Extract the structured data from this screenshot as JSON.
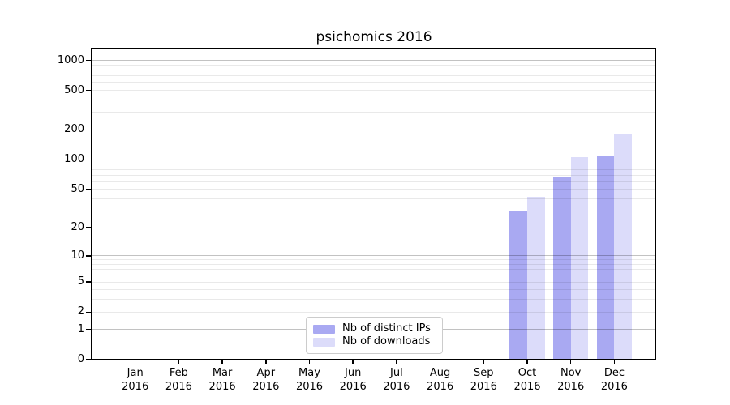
{
  "chart_data": {
    "type": "bar",
    "title": "psichomics 2016",
    "categories": [
      "Jan",
      "Feb",
      "Mar",
      "Apr",
      "May",
      "Jun",
      "Jul",
      "Aug",
      "Sep",
      "Oct",
      "Nov",
      "Dec"
    ],
    "category_year": "2016",
    "series": [
      {
        "name": "Nb of distinct IPs",
        "color": "#a9a9f2",
        "values": [
          0,
          0,
          0,
          0,
          0,
          0,
          0,
          0,
          0,
          30,
          67,
          109
        ]
      },
      {
        "name": "Nb of downloads",
        "color": "#dcdcfa",
        "values": [
          0,
          0,
          0,
          0,
          0,
          0,
          0,
          0,
          0,
          42,
          106,
          182
        ]
      }
    ],
    "xlabel": "",
    "ylabel": "",
    "yscale": "log1p",
    "ylim": [
      0,
      1341
    ],
    "yticks": [
      0,
      1,
      2,
      5,
      10,
      20,
      50,
      100,
      200,
      500,
      1000
    ],
    "major_gridlines": [
      1,
      10,
      100,
      1000
    ],
    "minor_gridlines": [
      2,
      3,
      4,
      5,
      6,
      7,
      8,
      9,
      20,
      30,
      40,
      50,
      60,
      70,
      80,
      90,
      200,
      300,
      400,
      500,
      600,
      700,
      800,
      900
    ],
    "grid": true,
    "legend_position": "lower center-left inside plot"
  },
  "colors": {
    "background": "#ffffff",
    "spine": "#000000",
    "text": "#000000",
    "legend_border": "#cccccc",
    "bar_distinct_ips": "#a9a9f2",
    "bar_downloads": "#dcdcfa"
  }
}
